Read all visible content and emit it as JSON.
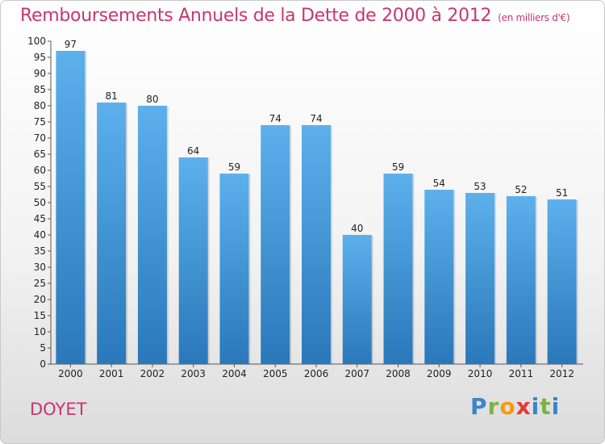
{
  "title": "Remboursements Annuels de la Dette de 2000 à 2012",
  "unit": "(en milliers d'€)",
  "place": "DOYET",
  "logo": {
    "text": "Proxiti",
    "letters": [
      "P",
      "r",
      "o",
      "x",
      "i",
      "t",
      "i"
    ]
  },
  "colors": {
    "bar_top": "#5cb0ec",
    "bar_bottom": "#2a78ba",
    "title": "#c8366e"
  },
  "chart_data": {
    "type": "bar",
    "title": "Remboursements Annuels de la Dette de 2000 à 2012",
    "xlabel": "",
    "ylabel": "",
    "categories": [
      "2000",
      "2001",
      "2002",
      "2003",
      "2004",
      "2005",
      "2006",
      "2007",
      "2008",
      "2009",
      "2010",
      "2011",
      "2012"
    ],
    "values": [
      97,
      81,
      80,
      64,
      59,
      74,
      74,
      40,
      59,
      54,
      53,
      52,
      51
    ],
    "ylim": [
      0,
      100
    ],
    "ytick_step": 5,
    "grid": false,
    "legend": "none"
  }
}
